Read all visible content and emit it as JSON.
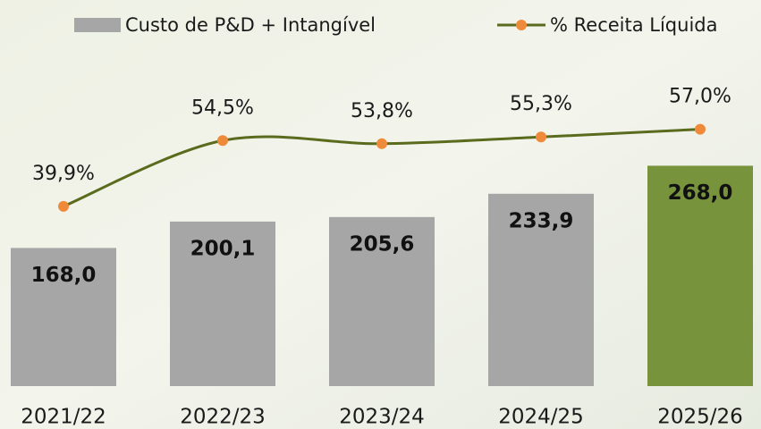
{
  "chart_data": {
    "type": "bar-line",
    "categories": [
      "2021/22",
      "2022/23",
      "2023/24",
      "2024/25",
      "2025/26"
    ],
    "series": [
      {
        "name": "Custo de P&D + Intangível",
        "type": "bar",
        "color": "#a6a6a6",
        "colors": [
          "#a6a6a6",
          "#a6a6a6",
          "#a6a6a6",
          "#a6a6a6",
          "#77933c"
        ],
        "values": [
          168.0,
          200.1,
          205.6,
          233.9,
          268.0
        ],
        "value_labels": [
          "168,0",
          "200,1",
          "205,6",
          "233,9",
          "268,0"
        ]
      },
      {
        "name": "% Receita Líquida",
        "type": "line",
        "axis": "y2",
        "color": "#5a6b1e",
        "marker_color": "#ef8a3a",
        "values": [
          39.9,
          54.5,
          53.8,
          55.3,
          57.0
        ],
        "value_labels": [
          "39,9%",
          "54,5%",
          "53,8%",
          "55,3%",
          "57,0%"
        ]
      }
    ],
    "ylim": [
      0,
      400
    ],
    "y2lim": [
      0,
      73
    ],
    "legend": "top"
  }
}
